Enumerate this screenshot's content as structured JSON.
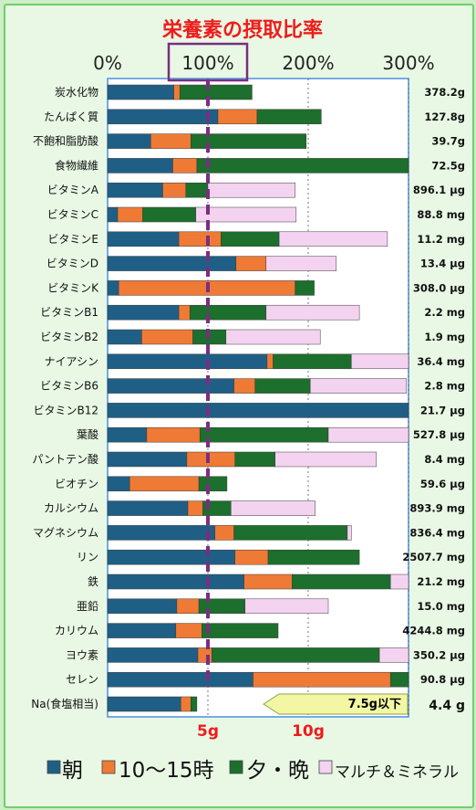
{
  "chart_data": {
    "type": "bar",
    "stacked": true,
    "orientation": "horizontal",
    "title": "栄養素の摂取比率",
    "x_ticks": [
      "0%",
      "100%",
      "200%",
      "300%"
    ],
    "xlim": [
      0,
      300
    ],
    "grid": true,
    "legend_position": "bottom",
    "series": [
      {
        "name": "朝",
        "color": "#1f5f86"
      },
      {
        "name": "10〜15時",
        "color": "#ef7a35"
      },
      {
        "name": "夕・晩",
        "color": "#1c6f2c"
      },
      {
        "name": "マルチ＆ミネラル",
        "color": "#f4d3f1"
      }
    ],
    "rows": [
      {
        "label": "炭水化物",
        "values": [
          66,
          6,
          72,
          0
        ],
        "total": "378.2g"
      },
      {
        "label": "たんぱく質",
        "values": [
          110,
          39,
          64,
          0
        ],
        "total": "127.8g"
      },
      {
        "label": "不飽和脂肪酸",
        "values": [
          43,
          40,
          115,
          0
        ],
        "total": "39.7g"
      },
      {
        "label": "食物繊維",
        "values": [
          65,
          24,
          211,
          0
        ],
        "total": "72.5g"
      },
      {
        "label": "ビタミンA",
        "values": [
          55,
          23,
          22,
          87
        ],
        "total": "896.1 μg"
      },
      {
        "label": "ビタミンC",
        "values": [
          10,
          25,
          53,
          100
        ],
        "total": "88.8 mg"
      },
      {
        "label": "ビタミンE",
        "values": [
          71,
          42,
          58,
          108
        ],
        "total": "11.2 mg"
      },
      {
        "label": "ビタミンD",
        "values": [
          128,
          30,
          0,
          70
        ],
        "total": "13.4 μg"
      },
      {
        "label": "ビタミンK",
        "values": [
          11,
          176,
          19,
          0
        ],
        "total": "308.0 μg"
      },
      {
        "label": "ビタミンB1",
        "values": [
          71,
          11,
          76,
          93
        ],
        "total": "2.2 mg"
      },
      {
        "label": "ビタミンB2",
        "values": [
          34,
          51,
          33,
          94
        ],
        "total": "1.9 mg"
      },
      {
        "label": "ナイアシン",
        "values": [
          159,
          6,
          78,
          57
        ],
        "total": "36.4 mg"
      },
      {
        "label": "ビタミンB6",
        "values": [
          126,
          21,
          55,
          96
        ],
        "total": "2.8 mg"
      },
      {
        "label": "ビタミンB12",
        "values": [
          300,
          0,
          0,
          0
        ],
        "total": "21.7 μg"
      },
      {
        "label": "葉酸",
        "values": [
          39,
          53,
          128,
          80
        ],
        "total": "527.8 μg"
      },
      {
        "label": "パントテン酸",
        "values": [
          79,
          48,
          40,
          101
        ],
        "total": "8.4 mg"
      },
      {
        "label": "ビオチン",
        "values": [
          22,
          69,
          28,
          0
        ],
        "total": "59.6 μg"
      },
      {
        "label": "カルシウム",
        "values": [
          80,
          15,
          28,
          84
        ],
        "total": "893.9 mg"
      },
      {
        "label": "マグネシウム",
        "values": [
          107,
          19,
          113,
          4
        ],
        "total": "836.4 mg"
      },
      {
        "label": "リン",
        "values": [
          127,
          33,
          91,
          0
        ],
        "total": "2507.7 mg"
      },
      {
        "label": "鉄",
        "values": [
          136,
          48,
          98,
          18
        ],
        "total": "21.2 mg"
      },
      {
        "label": "亜鉛",
        "values": [
          69,
          22,
          46,
          83
        ],
        "total": "15.0 mg"
      },
      {
        "label": "カリウム",
        "values": [
          68,
          26,
          76,
          0
        ],
        "total": "4244.8 mg"
      },
      {
        "label": "ヨウ素",
        "values": [
          90,
          14,
          167,
          31
        ],
        "total": "350.2 μg"
      },
      {
        "label": "セレン",
        "values": [
          145,
          137,
          18,
          0
        ],
        "total": "90.8 μg"
      },
      {
        "label": "Na(食塩相当)",
        "values": [
          73,
          10,
          6,
          0
        ],
        "total": "4.4 g"
      }
    ],
    "salt_axis": {
      "ticks": [
        "5g",
        "10g"
      ],
      "values": [
        5,
        10
      ]
    },
    "annotation": "7.5g以下"
  }
}
